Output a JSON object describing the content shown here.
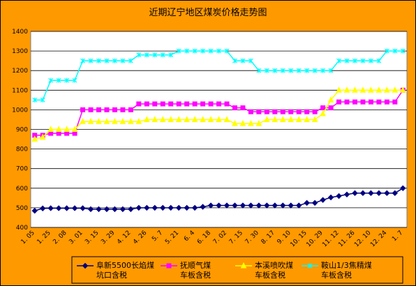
{
  "chart_data": {
    "type": "line",
    "title": "近期辽宁地区煤炭价格走势图",
    "categories": [
      "1. 05",
      null,
      "1. 25",
      null,
      "2. 08",
      null,
      "3. 01",
      null,
      "3. 15",
      null,
      "3. 29",
      null,
      "4. 12",
      null,
      "4. 26",
      null,
      "5. 7",
      null,
      "5. 21",
      null,
      "6. 4",
      null,
      "6. 18",
      null,
      "7. 02",
      null,
      "7. 15",
      null,
      "7. 30",
      null,
      "8. 17",
      null,
      "9. 10",
      null,
      "10. 15",
      null,
      "10. 29",
      null,
      "11. 12",
      null,
      "11. 26",
      null,
      "12. 10",
      null,
      "12. 24",
      null,
      "1. 7"
    ],
    "series": [
      {
        "name": "阜新5500长焰煤\n坑口含税",
        "color": "#000080",
        "marker": "diamond",
        "values": [
          485,
          497,
          498,
          498,
          498,
          498,
          498,
          493,
          493,
          493,
          493,
          493,
          493,
          500,
          500,
          500,
          500,
          500,
          500,
          500,
          500,
          505,
          512,
          512,
          512,
          512,
          512,
          512,
          512,
          512,
          512,
          512,
          512,
          512,
          525,
          525,
          540,
          553,
          560,
          568,
          575,
          575,
          575,
          575,
          575,
          575,
          600
        ]
      },
      {
        "name": "抚顺气煤\n车板含税",
        "color": "#ff00ff",
        "marker": "square",
        "values": [
          870,
          870,
          880,
          880,
          880,
          880,
          1000,
          1000,
          1000,
          1000,
          1000,
          1000,
          1000,
          1030,
          1030,
          1030,
          1030,
          1030,
          1030,
          1030,
          1030,
          1030,
          1030,
          1030,
          1030,
          1010,
          1010,
          990,
          990,
          990,
          990,
          990,
          990,
          990,
          990,
          990,
          1010,
          1010,
          1040,
          1040,
          1040,
          1040,
          1040,
          1040,
          1040,
          1040,
          1100
        ]
      },
      {
        "name": "本溪喷吹煤\n车板含税",
        "color": "#ffff00",
        "marker": "triangle",
        "values": [
          850,
          860,
          900,
          900,
          900,
          900,
          940,
          940,
          940,
          940,
          940,
          940,
          940,
          940,
          950,
          950,
          950,
          950,
          950,
          950,
          950,
          950,
          950,
          950,
          950,
          930,
          930,
          930,
          930,
          950,
          950,
          950,
          950,
          950,
          950,
          950,
          980,
          1050,
          1100,
          1100,
          1100,
          1100,
          1100,
          1100,
          1100,
          1100,
          1100
        ]
      },
      {
        "name": "鞍山1/3焦精煤\n车板含税",
        "color": "#00ffff",
        "marker": "cross",
        "values": [
          1050,
          1050,
          1150,
          1150,
          1150,
          1150,
          1250,
          1250,
          1250,
          1250,
          1250,
          1250,
          1250,
          1280,
          1280,
          1280,
          1280,
          1280,
          1300,
          1300,
          1300,
          1300,
          1300,
          1300,
          1300,
          1250,
          1250,
          1250,
          1200,
          1200,
          1200,
          1200,
          1200,
          1200,
          1200,
          1200,
          1200,
          1200,
          1250,
          1250,
          1250,
          1250,
          1250,
          1250,
          1300,
          1300,
          1300
        ]
      }
    ],
    "ylim": [
      400,
      1400
    ],
    "yticks": [
      400,
      500,
      600,
      700,
      800,
      900,
      1000,
      1100,
      1200,
      1300,
      1400
    ],
    "grid": true
  }
}
